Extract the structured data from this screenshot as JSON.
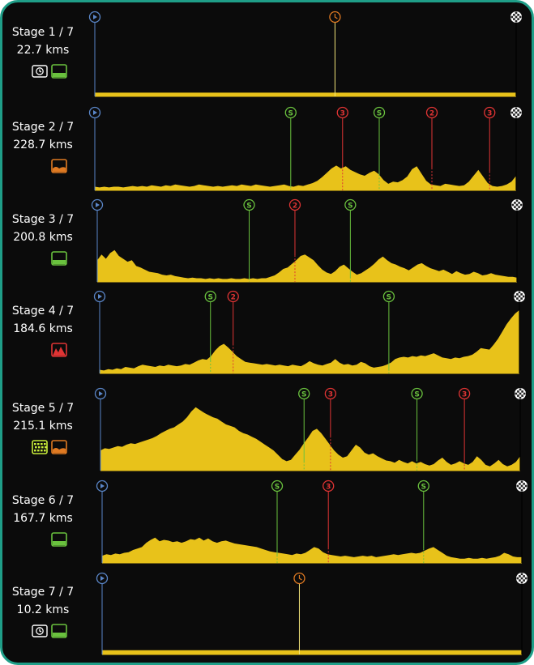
{
  "colors": {
    "background": "#0b0b0b",
    "frame": "#1f9e88",
    "profile": "#e8c21a",
    "start": "#5a86c8",
    "sprint": "#6ac23e",
    "climb": "#e03434",
    "time": "#e07a22",
    "finish": "#ffffff"
  },
  "stages": [
    {
      "label": "Stage 1 / 7",
      "distance": "22.7 kms",
      "terrain_icons": [
        "individual-time-trial-icon",
        "flat-terrain-icon"
      ],
      "elevation": [
        0.05,
        0.05,
        0.05,
        0.05,
        0.05,
        0.05,
        0.05,
        0.05,
        0.05,
        0.05,
        0.05,
        0.05,
        0.05,
        0.05,
        0.05,
        0.05,
        0.05,
        0.05,
        0.05,
        0.05,
        0.05,
        0.05
      ],
      "markers": [
        {
          "type": "start",
          "pos": 0.0
        },
        {
          "type": "time",
          "pos": 0.57
        },
        {
          "type": "finish",
          "pos": 1.0
        }
      ]
    },
    {
      "label": "Stage 2 / 7",
      "distance": "228.7 kms",
      "terrain_icons": [
        "hilly-terrain-icon"
      ],
      "elevation": [
        0.05,
        0.04,
        0.05,
        0.04,
        0.05,
        0.05,
        0.04,
        0.05,
        0.06,
        0.05,
        0.06,
        0.05,
        0.07,
        0.06,
        0.05,
        0.07,
        0.06,
        0.08,
        0.07,
        0.06,
        0.05,
        0.06,
        0.08,
        0.07,
        0.06,
        0.05,
        0.06,
        0.05,
        0.06,
        0.07,
        0.06,
        0.08,
        0.07,
        0.06,
        0.08,
        0.07,
        0.06,
        0.05,
        0.06,
        0.07,
        0.08,
        0.06,
        0.05,
        0.07,
        0.06,
        0.08,
        0.1,
        0.13,
        0.18,
        0.24,
        0.3,
        0.34,
        0.3,
        0.33,
        0.28,
        0.25,
        0.22,
        0.2,
        0.24,
        0.27,
        0.22,
        0.14,
        0.09,
        0.12,
        0.11,
        0.14,
        0.19,
        0.29,
        0.33,
        0.23,
        0.13,
        0.08,
        0.07,
        0.06,
        0.09,
        0.08,
        0.07,
        0.06,
        0.07,
        0.12,
        0.2,
        0.28,
        0.19,
        0.1,
        0.06,
        0.05,
        0.06,
        0.08,
        0.12,
        0.2
      ],
      "markers": [
        {
          "type": "start",
          "pos": 0.0
        },
        {
          "type": "sprint",
          "label": "S",
          "pos": 0.465,
          "peak": 0.06
        },
        {
          "type": "climb",
          "label": "3",
          "pos": 0.588,
          "peak": 0.33
        },
        {
          "type": "sprint",
          "label": "S",
          "pos": 0.675,
          "peak": 0.22
        },
        {
          "type": "climb",
          "label": "2",
          "pos": 0.8,
          "peak": 0.31
        },
        {
          "type": "climb",
          "label": "3",
          "pos": 0.937,
          "peak": 0.26
        },
        {
          "type": "finish",
          "pos": 1.0
        }
      ]
    },
    {
      "label": "Stage 3 / 7",
      "distance": "200.8 kms",
      "terrain_icons": [
        "flat-terrain-icon"
      ],
      "elevation": [
        0.3,
        0.38,
        0.32,
        0.4,
        0.44,
        0.36,
        0.32,
        0.28,
        0.3,
        0.22,
        0.2,
        0.17,
        0.14,
        0.13,
        0.12,
        0.1,
        0.09,
        0.1,
        0.08,
        0.07,
        0.06,
        0.05,
        0.06,
        0.05,
        0.05,
        0.04,
        0.05,
        0.04,
        0.05,
        0.04,
        0.04,
        0.05,
        0.04,
        0.04,
        0.05,
        0.04,
        0.05,
        0.04,
        0.05,
        0.05,
        0.07,
        0.09,
        0.13,
        0.18,
        0.2,
        0.25,
        0.3,
        0.36,
        0.38,
        0.34,
        0.3,
        0.23,
        0.17,
        0.13,
        0.11,
        0.15,
        0.21,
        0.24,
        0.19,
        0.14,
        0.1,
        0.12,
        0.16,
        0.2,
        0.25,
        0.31,
        0.35,
        0.3,
        0.26,
        0.24,
        0.21,
        0.19,
        0.16,
        0.2,
        0.24,
        0.26,
        0.22,
        0.19,
        0.17,
        0.15,
        0.17,
        0.14,
        0.11,
        0.15,
        0.12,
        0.1,
        0.11,
        0.14,
        0.12,
        0.09,
        0.1,
        0.12,
        0.1,
        0.09,
        0.08,
        0.07,
        0.07,
        0.06
      ],
      "markers": [
        {
          "type": "start",
          "pos": 0.0
        },
        {
          "type": "sprint",
          "label": "S",
          "pos": 0.362,
          "peak": 0.05
        },
        {
          "type": "climb",
          "label": "2",
          "pos": 0.471,
          "peak": 0.37
        },
        {
          "type": "sprint",
          "label": "S",
          "pos": 0.603,
          "peak": 0.07
        },
        {
          "type": "finish",
          "pos": 1.0
        }
      ]
    },
    {
      "label": "Stage 4 / 7",
      "distance": "184.6 kms",
      "terrain_icons": [
        "mountain-terrain-icon"
      ],
      "elevation": [
        0.05,
        0.04,
        0.06,
        0.05,
        0.07,
        0.06,
        0.09,
        0.08,
        0.07,
        0.1,
        0.12,
        0.11,
        0.1,
        0.09,
        0.11,
        0.1,
        0.12,
        0.11,
        0.1,
        0.11,
        0.13,
        0.12,
        0.15,
        0.18,
        0.2,
        0.19,
        0.24,
        0.32,
        0.38,
        0.41,
        0.36,
        0.3,
        0.24,
        0.2,
        0.16,
        0.15,
        0.14,
        0.13,
        0.12,
        0.13,
        0.12,
        0.11,
        0.12,
        0.11,
        0.1,
        0.12,
        0.11,
        0.1,
        0.13,
        0.17,
        0.14,
        0.12,
        0.11,
        0.13,
        0.15,
        0.2,
        0.15,
        0.12,
        0.13,
        0.11,
        0.12,
        0.16,
        0.14,
        0.1,
        0.08,
        0.09,
        0.1,
        0.12,
        0.15,
        0.2,
        0.22,
        0.23,
        0.22,
        0.24,
        0.23,
        0.25,
        0.24,
        0.26,
        0.28,
        0.25,
        0.22,
        0.21,
        0.2,
        0.22,
        0.21,
        0.23,
        0.24,
        0.26,
        0.3,
        0.35,
        0.34,
        0.33,
        0.4,
        0.48,
        0.58,
        0.68,
        0.76,
        0.83,
        0.88
      ],
      "markers": [
        {
          "type": "start",
          "pos": 0.0
        },
        {
          "type": "sprint",
          "label": "S",
          "pos": 0.264,
          "peak": 0.18
        },
        {
          "type": "climb",
          "label": "2",
          "pos": 0.318,
          "peak": 0.41
        },
        {
          "type": "sprint",
          "label": "S",
          "pos": 0.689,
          "peak": 0.06
        },
        {
          "type": "finish",
          "pos": 1.0
        }
      ]
    },
    {
      "label": "Stage 5 / 7",
      "distance": "215.1 kms",
      "terrain_icons": [
        "cobbles-terrain-icon",
        "hilly-terrain-icon"
      ],
      "elevation": [
        0.28,
        0.31,
        0.3,
        0.32,
        0.34,
        0.33,
        0.36,
        0.38,
        0.37,
        0.39,
        0.41,
        0.43,
        0.45,
        0.48,
        0.52,
        0.55,
        0.58,
        0.6,
        0.64,
        0.68,
        0.74,
        0.82,
        0.88,
        0.84,
        0.8,
        0.77,
        0.74,
        0.72,
        0.68,
        0.64,
        0.62,
        0.6,
        0.55,
        0.52,
        0.5,
        0.47,
        0.44,
        0.4,
        0.36,
        0.32,
        0.28,
        0.22,
        0.16,
        0.13,
        0.15,
        0.22,
        0.29,
        0.38,
        0.46,
        0.55,
        0.58,
        0.52,
        0.44,
        0.36,
        0.28,
        0.22,
        0.18,
        0.2,
        0.28,
        0.36,
        0.32,
        0.25,
        0.22,
        0.24,
        0.2,
        0.17,
        0.14,
        0.13,
        0.11,
        0.15,
        0.12,
        0.1,
        0.13,
        0.1,
        0.12,
        0.09,
        0.07,
        0.09,
        0.14,
        0.18,
        0.12,
        0.08,
        0.1,
        0.13,
        0.1,
        0.08,
        0.12,
        0.2,
        0.15,
        0.08,
        0.06,
        0.1,
        0.15,
        0.09,
        0.06,
        0.08,
        0.12,
        0.2
      ],
      "markers": [
        {
          "type": "start",
          "pos": 0.0
        },
        {
          "type": "sprint",
          "label": "S",
          "pos": 0.485,
          "peak": 0.13
        },
        {
          "type": "climb",
          "label": "3",
          "pos": 0.548,
          "peak": 0.48
        },
        {
          "type": "sprint",
          "label": "S",
          "pos": 0.754,
          "peak": 0.15
        },
        {
          "type": "climb",
          "label": "3",
          "pos": 0.867,
          "peak": 0.13
        },
        {
          "type": "finish",
          "pos": 1.0
        }
      ]
    },
    {
      "label": "Stage 6 / 7",
      "distance": "167.7 kms",
      "terrain_icons": [
        "flat-terrain-icon"
      ],
      "elevation": [
        0.1,
        0.12,
        0.11,
        0.13,
        0.12,
        0.14,
        0.15,
        0.18,
        0.2,
        0.22,
        0.28,
        0.32,
        0.35,
        0.3,
        0.32,
        0.31,
        0.29,
        0.3,
        0.28,
        0.3,
        0.33,
        0.32,
        0.35,
        0.31,
        0.34,
        0.3,
        0.28,
        0.3,
        0.31,
        0.29,
        0.27,
        0.26,
        0.25,
        0.24,
        0.23,
        0.22,
        0.2,
        0.18,
        0.16,
        0.15,
        0.14,
        0.13,
        0.12,
        0.11,
        0.13,
        0.12,
        0.14,
        0.18,
        0.22,
        0.2,
        0.15,
        0.12,
        0.11,
        0.1,
        0.09,
        0.1,
        0.09,
        0.08,
        0.09,
        0.1,
        0.09,
        0.1,
        0.08,
        0.09,
        0.1,
        0.11,
        0.12,
        0.11,
        0.12,
        0.13,
        0.14,
        0.13,
        0.14,
        0.17,
        0.2,
        0.22,
        0.18,
        0.14,
        0.1,
        0.08,
        0.07,
        0.06,
        0.06,
        0.07,
        0.06,
        0.06,
        0.07,
        0.06,
        0.07,
        0.08,
        0.1,
        0.14,
        0.12,
        0.09,
        0.08,
        0.08
      ],
      "markers": [
        {
          "type": "start",
          "pos": 0.0
        },
        {
          "type": "sprint",
          "label": "S",
          "pos": 0.417,
          "peak": 0.11
        },
        {
          "type": "climb",
          "label": "3",
          "pos": 0.539,
          "peak": 0.21
        },
        {
          "type": "sprint",
          "label": "S",
          "pos": 0.766,
          "peak": 0.2
        },
        {
          "type": "finish",
          "pos": 1.0
        }
      ]
    },
    {
      "label": "Stage 7 / 7",
      "distance": "10.2 kms",
      "terrain_icons": [
        "individual-time-trial-icon",
        "flat-terrain-icon"
      ],
      "elevation": [
        0.06,
        0.06,
        0.06,
        0.06,
        0.06,
        0.06,
        0.06,
        0.06,
        0.06,
        0.06,
        0.06,
        0.06,
        0.06,
        0.06,
        0.06,
        0.06,
        0.06,
        0.06,
        0.06,
        0.06,
        0.06,
        0.06
      ],
      "markers": [
        {
          "type": "start",
          "pos": 0.0
        },
        {
          "type": "time",
          "pos": 0.47
        },
        {
          "type": "finish",
          "pos": 1.0
        }
      ]
    }
  ]
}
